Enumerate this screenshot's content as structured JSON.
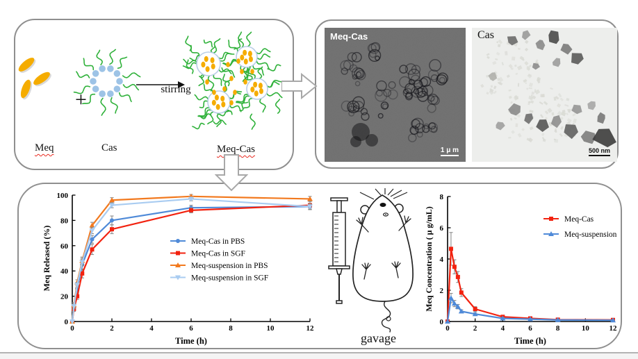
{
  "schematic": {
    "meq_label": "Meq",
    "plus": "+",
    "cas_label": "Cas",
    "arrow_label": "stirring",
    "product_label": "Meq-Cas"
  },
  "tem": {
    "left_label": "Meq-Cas",
    "left_scale": "1 μ m",
    "right_label": "Cas",
    "right_scale": "500 nm"
  },
  "gavage_label": "gavage",
  "colors": {
    "panel_border": "#8f8f8f",
    "green_polymer": "#2fb13a",
    "micelle_dot_blue": "#9dc3e6",
    "micelle_ring": "#b9cde6",
    "meq_yellow": "#f5ac00",
    "arrow_outline": "#a8a8a8",
    "tem_left_bg": "#6f6f6f",
    "tem_right_bg": "#edeeec",
    "series_blue": "#4f8ad8",
    "series_red": "#f2220f",
    "series_orange": "#f2791e",
    "series_lightblue": "#a9ccf1",
    "errorbar_gray": "#8c8c8c"
  },
  "chart_data": [
    {
      "id": "release",
      "type": "line",
      "title": "",
      "xlabel": "Time (h)",
      "ylabel": "Meq Released (%)",
      "xlim": [
        0,
        12
      ],
      "ylim": [
        0,
        100
      ],
      "xticks": [
        0,
        2,
        4,
        6,
        8,
        10,
        12
      ],
      "yticks": [
        0,
        20,
        40,
        60,
        80,
        100
      ],
      "grid": false,
      "legend_position": "middle-right-inside",
      "x": [
        0,
        0.083,
        0.25,
        0.5,
        1,
        2,
        6,
        12
      ],
      "series": [
        {
          "name": "Meq-Cas in PBS",
          "color": "#4f8ad8",
          "marker": "circle",
          "values": [
            0,
            12,
            26,
            45,
            65,
            80,
            90,
            91
          ],
          "errors": [
            0,
            2,
            2.5,
            4,
            3,
            3.5,
            2,
            2.5
          ]
        },
        {
          "name": "Meq-Cas in SGF",
          "color": "#f2220f",
          "marker": "square",
          "values": [
            0,
            10,
            20,
            38,
            57,
            73,
            88,
            92
          ],
          "errors": [
            0,
            2,
            2.5,
            3.5,
            4,
            3.5,
            2,
            3
          ]
        },
        {
          "name": "Meq-suspension in PBS",
          "color": "#f2791e",
          "marker": "triangle-up",
          "values": [
            0,
            13,
            31,
            48,
            76,
            96,
            99,
            97
          ],
          "errors": [
            0,
            2,
            2,
            3,
            2.5,
            2,
            1.5,
            2
          ]
        },
        {
          "name": "Meq-suspension in SGF",
          "color": "#a9ccf1",
          "marker": "triangle-down",
          "values": [
            0,
            12,
            29,
            47,
            72,
            92,
            97,
            91
          ],
          "errors": [
            0,
            2,
            2,
            3,
            2.5,
            2,
            1.5,
            2
          ]
        }
      ]
    },
    {
      "id": "pk",
      "type": "line",
      "title": "",
      "xlabel": "Time (h)",
      "ylabel": "Meq Concentration ( μ g/mL)",
      "xlim": [
        0,
        12
      ],
      "ylim": [
        0,
        8
      ],
      "xticks": [
        0,
        2,
        4,
        6,
        8,
        10,
        12
      ],
      "yticks": [
        0,
        2,
        4,
        6,
        8
      ],
      "grid": false,
      "legend_position": "top-right-inside",
      "x": [
        0,
        0.25,
        0.5,
        0.75,
        1,
        2,
        4,
        6,
        8,
        12
      ],
      "series": [
        {
          "name": "Meq-Cas",
          "color": "#f2220f",
          "marker": "square",
          "values": [
            0,
            4.65,
            3.5,
            2.85,
            1.85,
            0.8,
            0.3,
            0.2,
            0.12,
            0.1
          ],
          "errors": [
            0,
            1.05,
            0.45,
            0.35,
            0.25,
            0.15,
            0.08,
            0.05,
            0.05,
            0.04
          ]
        },
        {
          "name": "Meq-suspension",
          "color": "#4f8ad8",
          "marker": "triangle-up",
          "values": [
            0,
            1.5,
            1.15,
            0.95,
            0.65,
            0.48,
            0.2,
            0.15,
            0.1,
            0.08
          ],
          "errors": [
            0,
            0.3,
            0.2,
            0.14,
            0.1,
            0.08,
            0.05,
            0.04,
            0.03,
            0.03
          ]
        }
      ]
    }
  ]
}
